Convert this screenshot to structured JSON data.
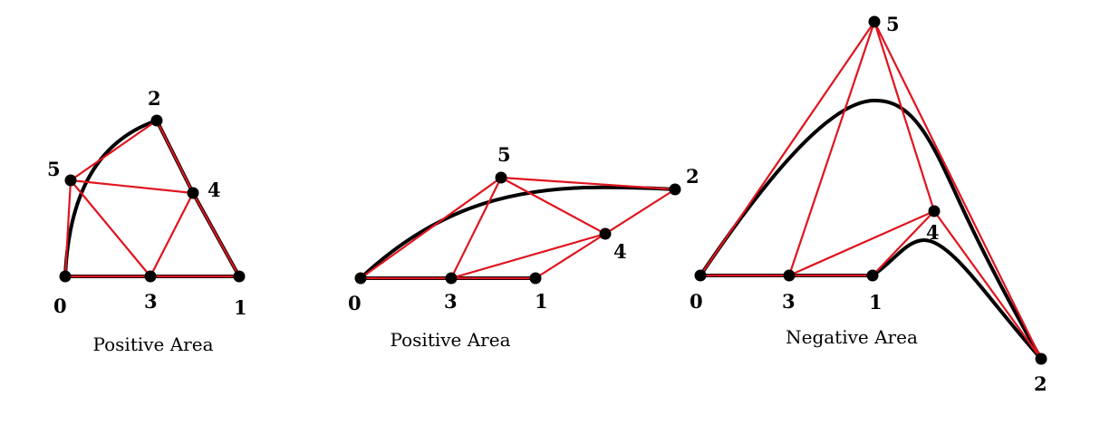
{
  "colors": {
    "edge": "#e0141e",
    "curve": "#000000",
    "node": "#000000"
  },
  "panels": [
    {
      "caption": "Positive Area",
      "labels": {
        "n0": "0",
        "n1": "1",
        "n2": "2",
        "n3": "3",
        "n4": "4",
        "n5": "5"
      }
    },
    {
      "caption": "Positive Area",
      "labels": {
        "n0": "0",
        "n1": "1",
        "n2": "2",
        "n3": "3",
        "n4": "4",
        "n5": "5"
      }
    },
    {
      "caption": "Negative Area",
      "labels": {
        "n0": "0",
        "n1": "1",
        "n2": "2",
        "n3": "3",
        "n4": "4",
        "n5": "5"
      }
    }
  ]
}
